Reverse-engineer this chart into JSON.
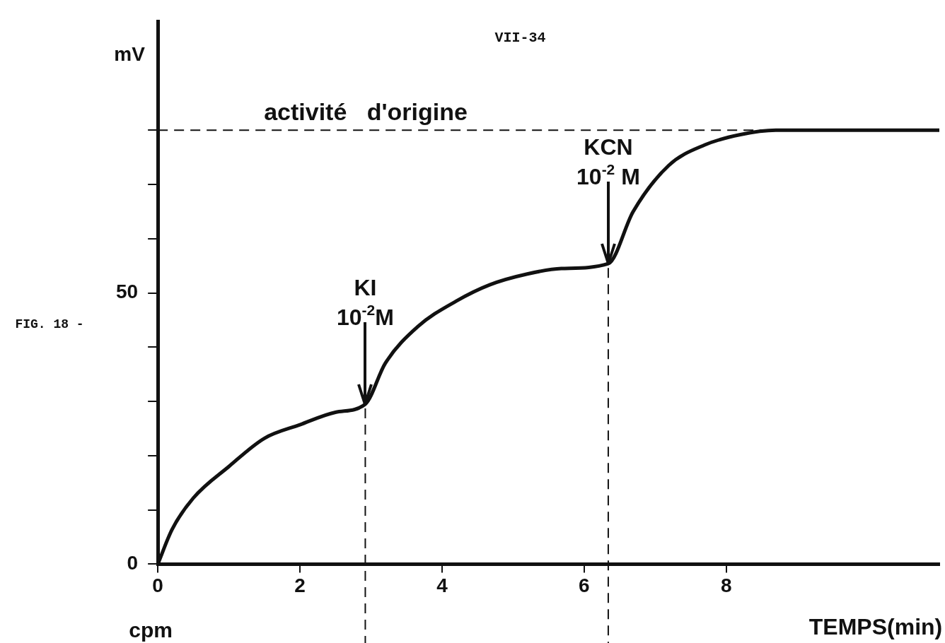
{
  "chart_data": {
    "type": "line",
    "title": "VII-34",
    "xlabel": "TEMPS(min)",
    "ylabel": "mV",
    "x": [
      0,
      0.2,
      0.5,
      1,
      1.5,
      2,
      2.5,
      2.92,
      3.2,
      3.66,
      4.2,
      4.67,
      5.2,
      5.68,
      6.34,
      6.69,
      7.19,
      7.7,
      8.2,
      8.7,
      9.5,
      11
    ],
    "series": [
      {
        "color": "#111111",
        "values": [
          0,
          6.4,
          12.2,
          18,
          23.2,
          25.7,
          28,
          29.5,
          37,
          43.8,
          48.5,
          51.5,
          53.5,
          54.5,
          55.4,
          65,
          73.5,
          77.3,
          79.2,
          80,
          80,
          80
        ]
      }
    ],
    "xlim": [
      0,
      11
    ],
    "xticks": [
      0,
      2,
      4,
      6,
      8
    ],
    "ylim": [
      0,
      100
    ],
    "yticks": [
      0,
      {
        "value": 10,
        "label": null
      },
      {
        "value": 20,
        "label": null
      },
      {
        "value": 30,
        "label": null
      },
      {
        "value": 40,
        "label": null
      },
      50,
      {
        "value": 60,
        "label": null
      },
      {
        "value": 70,
        "label": null
      },
      {
        "value": 80,
        "label": null
      }
    ],
    "ref_lines": [
      {
        "axis": "y",
        "value": 80,
        "label": "activité   d'origine",
        "line_style": "dashed"
      },
      {
        "axis": "x",
        "value": 2.92,
        "label": null,
        "line_style": "dashed"
      },
      {
        "axis": "x",
        "value": 6.34,
        "label": null,
        "line_style": "dashed"
      }
    ],
    "annotations": [
      {
        "text": "KI\n10$^{-2}$M",
        "x": 2.92,
        "y": 29.5
      },
      {
        "text": "KCN\n10$^{-2}$ M",
        "x": 6.34,
        "y": 55.4
      },
      "FIG. 18 -",
      "cpm"
    ],
    "grid": false,
    "legend": false,
    "marker": "none",
    "line_style": "solid"
  }
}
